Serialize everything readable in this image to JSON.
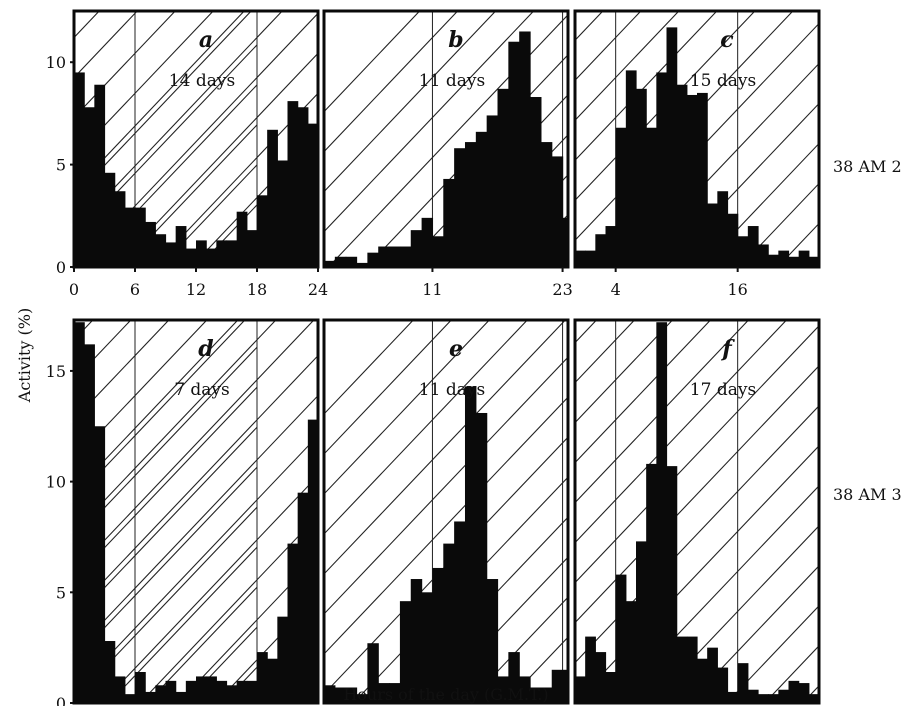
{
  "figure": {
    "ylabel": "Activity (%)",
    "xlabel": "Hours of the day (G.M.T.)",
    "rows": [
      {
        "label": "38 AM 2",
        "y_ticks": [
          "0",
          "5",
          "10"
        ]
      },
      {
        "label": "38 AM 3",
        "y_ticks": [
          "0",
          "5",
          "10",
          "15"
        ]
      }
    ]
  },
  "chart_data": [
    {
      "type": "bar",
      "panel": "a",
      "days": "14 days",
      "row": 0,
      "col": 0,
      "x_tick_labels": [
        "0",
        "6",
        "12",
        "18",
        "24"
      ],
      "x_tick_hours": [
        0,
        6,
        12,
        18,
        24
      ],
      "dark": [
        [
          0,
          6
        ],
        [
          18,
          24
        ]
      ],
      "xlim": [
        0,
        24
      ],
      "ylim": [
        0,
        12.5
      ],
      "values": [
        9.5,
        7.8,
        8.9,
        4.6,
        3.7,
        2.9,
        2.9,
        2.2,
        1.6,
        1.2,
        2.0,
        0.9,
        1.3,
        0.9,
        1.3,
        1.3,
        2.7,
        1.8,
        3.5,
        6.7,
        5.2,
        8.1,
        7.8,
        7.0,
        7.0
      ]
    },
    {
      "type": "bar",
      "panel": "b",
      "days": "11 days",
      "row": 0,
      "col": 1,
      "x_tick_labels": [
        "11",
        "23"
      ],
      "x_tick_hours": [
        11,
        23
      ],
      "dark": [
        [
          11,
          23
        ]
      ],
      "xlim": [
        1,
        23.5
      ],
      "ylim": [
        0,
        12.5
      ],
      "values": [
        0.3,
        0.5,
        0.5,
        0.2,
        0.7,
        1.0,
        1.0,
        1.0,
        1.8,
        2.4,
        1.5,
        4.3,
        5.8,
        6.1,
        6.6,
        7.4,
        8.7,
        11.0,
        11.5,
        8.3,
        6.1,
        5.4,
        2.4
      ]
    },
    {
      "type": "bar",
      "panel": "c",
      "days": "15 days",
      "row": 0,
      "col": 2,
      "x_tick_labels": [
        "4",
        "16"
      ],
      "x_tick_hours": [
        4,
        16
      ],
      "dark": [
        [
          4,
          16
        ]
      ],
      "xlim": [
        0,
        24
      ],
      "ylim": [
        0,
        12.5
      ],
      "values": [
        0.8,
        0.8,
        1.6,
        2.0,
        6.8,
        9.6,
        8.7,
        6.8,
        9.5,
        11.7,
        8.9,
        8.4,
        8.5,
        3.1,
        3.7,
        2.6,
        1.5,
        2.0,
        1.1,
        0.6,
        0.8,
        0.5,
        0.8,
        0.5
      ]
    },
    {
      "type": "bar",
      "panel": "d",
      "days": "7 days",
      "row": 1,
      "col": 0,
      "x_tick_labels": [],
      "x_tick_hours": [],
      "dark": [
        [
          0,
          6
        ],
        [
          18,
          24
        ]
      ],
      "xlim": [
        0,
        24
      ],
      "ylim": [
        0,
        17.3
      ],
      "values": [
        17.2,
        16.2,
        12.5,
        2.8,
        1.2,
        0.4,
        1.4,
        0.5,
        0.8,
        1.0,
        0.5,
        1.0,
        1.2,
        1.2,
        1.0,
        0.8,
        1.0,
        1.0,
        2.3,
        2.0,
        3.9,
        7.2,
        9.5,
        12.8
      ]
    },
    {
      "type": "bar",
      "panel": "e",
      "days": "11 days",
      "row": 1,
      "col": 1,
      "x_tick_labels": [],
      "x_tick_hours": [],
      "dark": [
        [
          11,
          23
        ]
      ],
      "xlim": [
        1,
        23.5
      ],
      "ylim": [
        0,
        17.3
      ],
      "values": [
        0.8,
        0.7,
        0.7,
        0.4,
        2.7,
        0.9,
        0.9,
        4.6,
        5.6,
        5.0,
        6.1,
        7.2,
        8.2,
        14.3,
        13.1,
        5.6,
        1.2,
        2.3,
        1.2,
        0.7,
        0.7,
        1.5,
        1.5
      ]
    },
    {
      "type": "bar",
      "panel": "f",
      "days": "17 days",
      "row": 1,
      "col": 2,
      "x_tick_labels": [],
      "x_tick_hours": [],
      "dark": [
        [
          4,
          16
        ]
      ],
      "xlim": [
        0,
        24
      ],
      "ylim": [
        0,
        17.3
      ],
      "values": [
        1.2,
        3.0,
        2.3,
        1.4,
        5.8,
        4.6,
        7.3,
        10.8,
        17.2,
        10.7,
        3.0,
        3.0,
        2.0,
        2.5,
        1.6,
        0.5,
        1.8,
        0.6,
        0.4,
        0.4,
        0.6,
        1.0,
        0.9,
        0.4
      ]
    }
  ]
}
